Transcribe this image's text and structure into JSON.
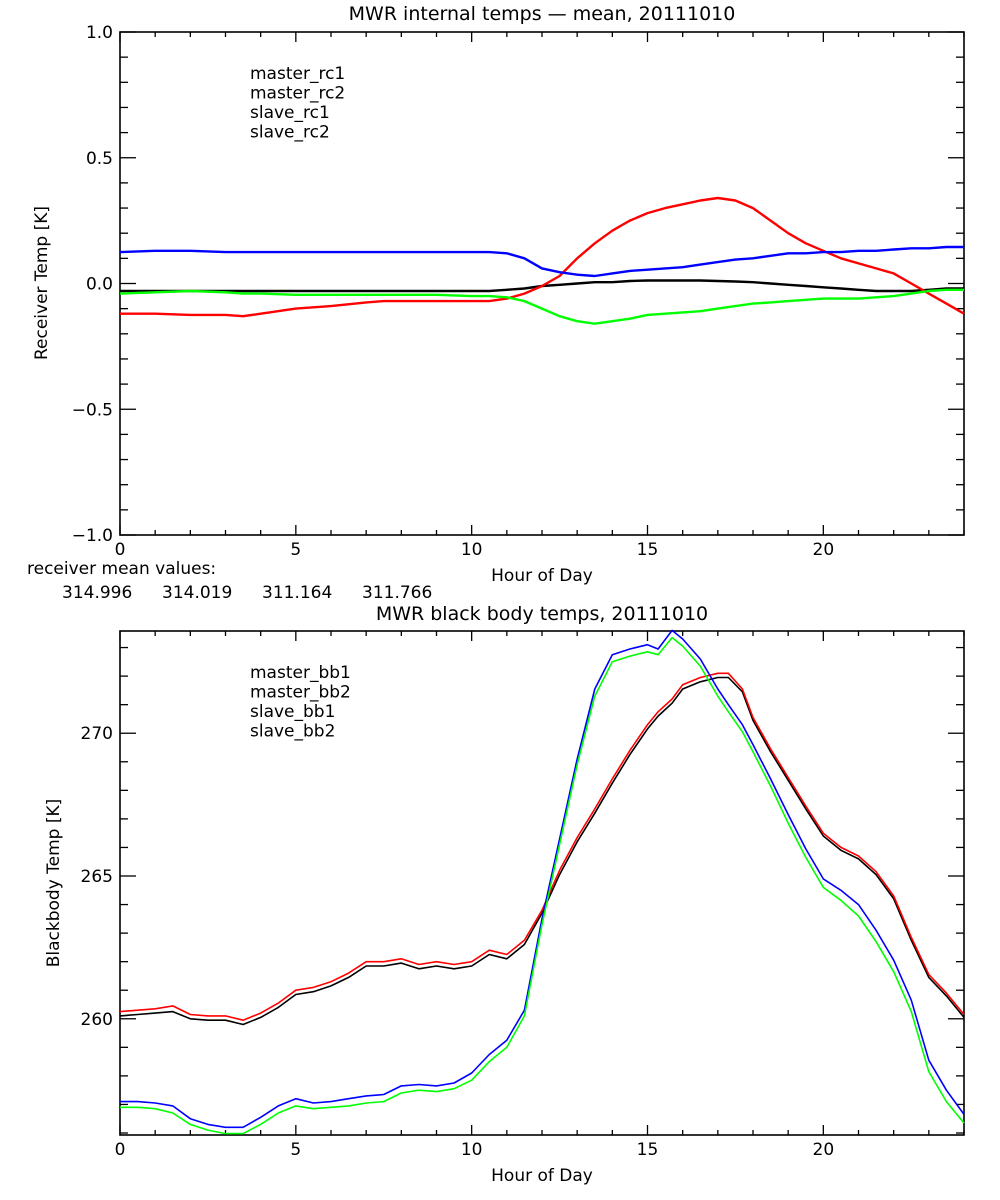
{
  "chart_data": [
    {
      "type": "line",
      "title": "MWR internal temps — mean, 20111010",
      "xlabel": "Hour of Day",
      "ylabel": "Receiver Temp [K]",
      "xlim": [
        0,
        24
      ],
      "ylim": [
        -1.0,
        1.0
      ],
      "xticks": [
        0,
        5,
        10,
        15,
        20
      ],
      "xtick_labels": [
        "0",
        "5",
        "10",
        "15",
        "20"
      ],
      "yticks": [
        -1.0,
        -0.5,
        0.0,
        0.5,
        1.0
      ],
      "ytick_labels": [
        "−1.0",
        "−0.5",
        "0.0",
        "0.5",
        "1.0"
      ],
      "x_minor_step": 1,
      "y_minor_step": 0.1,
      "grid": false,
      "legend": "top-left",
      "x": [
        0,
        1,
        2,
        3,
        3.5,
        4,
        5,
        6,
        7,
        7.5,
        8,
        9,
        10,
        10.5,
        11,
        11.5,
        12,
        12.5,
        13,
        13.5,
        14,
        14.5,
        15,
        15.5,
        16,
        16.5,
        17,
        17.5,
        18,
        18.5,
        19,
        19.5,
        20,
        20.5,
        21,
        21.5,
        22,
        22.5,
        23,
        23.5,
        24
      ],
      "series": [
        {
          "name": "master_rc1",
          "color": "#000000",
          "values": [
            -0.03,
            -0.03,
            -0.03,
            -0.03,
            -0.03,
            -0.03,
            -0.03,
            -0.03,
            -0.03,
            -0.03,
            -0.03,
            -0.03,
            -0.03,
            -0.03,
            -0.025,
            -0.02,
            -0.01,
            -0.005,
            0.0,
            0.005,
            0.005,
            0.01,
            0.012,
            0.012,
            0.012,
            0.012,
            0.01,
            0.008,
            0.005,
            0.0,
            -0.005,
            -0.01,
            -0.015,
            -0.02,
            -0.025,
            -0.03,
            -0.03,
            -0.03,
            -0.025,
            -0.02,
            -0.02
          ]
        },
        {
          "name": "master_rc2",
          "color": "#ff0000",
          "values": [
            -0.12,
            -0.12,
            -0.125,
            -0.125,
            -0.13,
            -0.12,
            -0.1,
            -0.09,
            -0.075,
            -0.07,
            -0.07,
            -0.07,
            -0.07,
            -0.07,
            -0.06,
            -0.04,
            -0.01,
            0.03,
            0.1,
            0.16,
            0.21,
            0.25,
            0.28,
            0.3,
            0.315,
            0.33,
            0.34,
            0.33,
            0.3,
            0.25,
            0.2,
            0.16,
            0.13,
            0.1,
            0.08,
            0.06,
            0.04,
            0.0,
            -0.04,
            -0.08,
            -0.12
          ]
        },
        {
          "name": "slave_rc1",
          "color": "#0000ff",
          "values": [
            0.125,
            0.13,
            0.13,
            0.125,
            0.125,
            0.125,
            0.125,
            0.125,
            0.125,
            0.125,
            0.125,
            0.125,
            0.125,
            0.125,
            0.12,
            0.1,
            0.06,
            0.045,
            0.035,
            0.03,
            0.04,
            0.05,
            0.055,
            0.06,
            0.065,
            0.075,
            0.085,
            0.095,
            0.1,
            0.11,
            0.12,
            0.12,
            0.125,
            0.125,
            0.13,
            0.13,
            0.135,
            0.14,
            0.14,
            0.145,
            0.145
          ]
        },
        {
          "name": "slave_rc2",
          "color": "#00ff00",
          "values": [
            -0.04,
            -0.035,
            -0.03,
            -0.035,
            -0.04,
            -0.04,
            -0.045,
            -0.045,
            -0.045,
            -0.045,
            -0.045,
            -0.045,
            -0.05,
            -0.05,
            -0.055,
            -0.07,
            -0.1,
            -0.13,
            -0.15,
            -0.16,
            -0.15,
            -0.14,
            -0.125,
            -0.12,
            -0.115,
            -0.11,
            -0.1,
            -0.09,
            -0.08,
            -0.075,
            -0.07,
            -0.065,
            -0.06,
            -0.06,
            -0.06,
            -0.055,
            -0.05,
            -0.04,
            -0.03,
            -0.025,
            -0.025
          ]
        }
      ]
    },
    {
      "type": "line",
      "title": "MWR black body temps, 20111010",
      "xlabel": "Hour of Day",
      "ylabel": "Blackbody Temp [K]",
      "xlim": [
        0,
        24
      ],
      "ylim": [
        255.93,
        273.58
      ],
      "xticks": [
        0,
        5,
        10,
        15,
        20
      ],
      "xtick_labels": [
        "0",
        "5",
        "10",
        "15",
        "20"
      ],
      "yticks": [
        260,
        265,
        270
      ],
      "ytick_labels": [
        "260",
        "265",
        "270"
      ],
      "x_minor_step": 1,
      "y_minor_step": 1,
      "grid": false,
      "legend": "top-left",
      "x": [
        0,
        0.5,
        1,
        1.5,
        2,
        2.5,
        3,
        3.5,
        4,
        4.5,
        5,
        5.5,
        6,
        6.5,
        7,
        7.5,
        8,
        8.5,
        9,
        9.5,
        10,
        10.5,
        11,
        11.5,
        12,
        12.5,
        13,
        13.5,
        14,
        14.5,
        15,
        15.3,
        15.7,
        16,
        16.5,
        17,
        17.3,
        17.7,
        18,
        18.5,
        19,
        19.5,
        20,
        20.5,
        21,
        21.5,
        22,
        22.5,
        23,
        23.5,
        24
      ],
      "series": [
        {
          "name": "master_bb1",
          "color": "#000000",
          "values": [
            260.1,
            260.15,
            260.2,
            260.25,
            260.0,
            259.95,
            259.95,
            259.8,
            260.05,
            260.4,
            260.85,
            260.95,
            261.15,
            261.45,
            261.85,
            261.85,
            261.95,
            261.75,
            261.85,
            261.75,
            261.85,
            262.25,
            262.1,
            262.6,
            263.7,
            265.05,
            266.2,
            267.2,
            268.25,
            269.25,
            270.15,
            270.6,
            271.05,
            271.55,
            271.8,
            271.95,
            271.95,
            271.45,
            270.45,
            269.35,
            268.35,
            267.35,
            266.4,
            265.9,
            265.6,
            265.05,
            264.2,
            262.75,
            261.45,
            260.8,
            260.05
          ]
        },
        {
          "name": "master_bb2",
          "color": "#ff0000",
          "values": [
            260.25,
            260.3,
            260.35,
            260.45,
            260.15,
            260.1,
            260.1,
            259.95,
            260.2,
            260.55,
            261.0,
            261.1,
            261.3,
            261.6,
            262.0,
            262.0,
            262.1,
            261.9,
            262.0,
            261.9,
            262.0,
            262.4,
            262.25,
            262.75,
            263.8,
            265.2,
            266.35,
            267.35,
            268.4,
            269.4,
            270.3,
            270.75,
            271.2,
            271.7,
            271.95,
            272.1,
            272.1,
            271.55,
            270.55,
            269.45,
            268.45,
            267.45,
            266.5,
            266.0,
            265.7,
            265.15,
            264.3,
            262.85,
            261.55,
            260.9,
            260.15
          ]
        },
        {
          "name": "slave_bb1",
          "color": "#0000ff",
          "values": [
            257.1,
            257.1,
            257.05,
            256.95,
            256.5,
            256.3,
            256.2,
            256.2,
            256.55,
            256.95,
            257.2,
            257.05,
            257.1,
            257.2,
            257.3,
            257.35,
            257.65,
            257.7,
            257.65,
            257.75,
            258.1,
            258.75,
            259.25,
            260.3,
            263.5,
            266.3,
            269.1,
            271.55,
            272.75,
            272.95,
            273.1,
            272.95,
            273.6,
            273.3,
            272.6,
            271.55,
            271.0,
            270.3,
            269.6,
            268.4,
            267.15,
            265.95,
            264.9,
            264.5,
            264.0,
            263.1,
            262.05,
            260.65,
            258.55,
            257.5,
            256.65
          ]
        },
        {
          "name": "slave_bb2",
          "color": "#00ff00",
          "values": [
            256.9,
            256.9,
            256.85,
            256.7,
            256.3,
            256.1,
            255.98,
            255.98,
            256.3,
            256.7,
            256.95,
            256.85,
            256.9,
            256.95,
            257.05,
            257.1,
            257.4,
            257.5,
            257.45,
            257.55,
            257.85,
            258.5,
            259.0,
            260.1,
            263.3,
            266.1,
            268.9,
            271.3,
            272.5,
            272.7,
            272.85,
            272.75,
            273.35,
            273.05,
            272.35,
            271.3,
            270.75,
            270.05,
            269.35,
            268.15,
            266.85,
            265.65,
            264.6,
            264.15,
            263.6,
            262.7,
            261.65,
            260.25,
            258.15,
            257.1,
            256.35
          ]
        }
      ]
    }
  ],
  "receiver_mean": {
    "label": "receiver mean values:",
    "values": [
      {
        "text": "314.996",
        "color": "#000000"
      },
      {
        "text": "314.019",
        "color": "#ff0000"
      },
      {
        "text": "311.164",
        "color": "#0000ff"
      },
      {
        "text": "311.766",
        "color": "#00ff00"
      }
    ]
  }
}
